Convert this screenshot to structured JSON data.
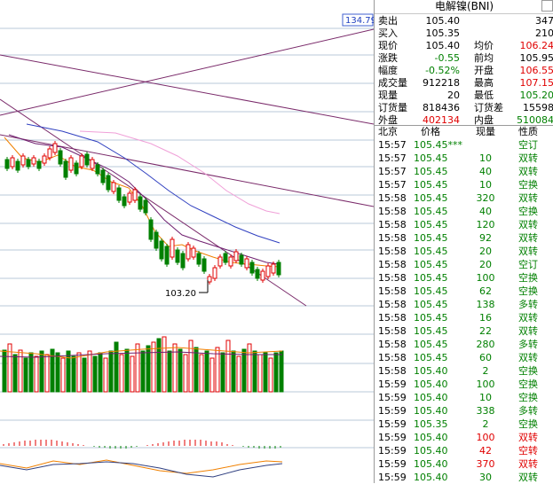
{
  "chart": {
    "price_tag": "134.79",
    "low_label": "103.20"
  },
  "panel": {
    "title": "电解镍(BNI)",
    "quote": [
      {
        "l1": "卖出",
        "v1": "105.40",
        "c1": "#000000",
        "l2": "",
        "v2": "347",
        "c2": "#000000"
      },
      {
        "l1": "买入",
        "v1": "105.35",
        "c1": "#000000",
        "l2": "",
        "v2": "210",
        "c2": "#000000"
      },
      {
        "l1": "现价",
        "v1": "105.40",
        "c1": "#000000",
        "l2": "均价",
        "v2": "106.24",
        "c2": "#e00000"
      },
      {
        "l1": "涨跌",
        "v1": "-0.55",
        "c1": "#008000",
        "l2": "前均",
        "v2": "105.95",
        "c2": "#000000"
      },
      {
        "l1": "幅度",
        "v1": "-0.52%",
        "c1": "#008000",
        "l2": "开盘",
        "v2": "106.55",
        "c2": "#e00000"
      },
      {
        "l1": "成交量",
        "v1": "912218",
        "c1": "#000000",
        "l2": "最高",
        "v2": "107.15",
        "c2": "#e00000"
      },
      {
        "l1": "现量",
        "v1": "20",
        "c1": "#000000",
        "l2": "最低",
        "v2": "105.20",
        "c2": "#008000"
      },
      {
        "l1": "订货量",
        "v1": "818436",
        "c1": "#000000",
        "l2": "订货差",
        "v2": "15598",
        "c2": "#000000"
      },
      {
        "l1": "外盘",
        "v1": "402134",
        "c1": "#e00000",
        "l2": "内盘",
        "v2": "510084",
        "c2": "#008000"
      }
    ],
    "trades_header": {
      "time": "北京",
      "price": "价格",
      "vol": "现量",
      "type": "性质"
    },
    "trades": [
      {
        "time": "15:57",
        "price": "105.45***",
        "vol": "",
        "type": "空订",
        "tc": "#008000",
        "vc": "#008000"
      },
      {
        "time": "15:57",
        "price": "105.45",
        "vol": "10",
        "type": "双转",
        "tc": "#008000",
        "vc": "#008000"
      },
      {
        "time": "15:57",
        "price": "105.45",
        "vol": "40",
        "type": "双转",
        "tc": "#008000",
        "vc": "#008000"
      },
      {
        "time": "15:57",
        "price": "105.45",
        "vol": "10",
        "type": "空换",
        "tc": "#008000",
        "vc": "#008000"
      },
      {
        "time": "15:58",
        "price": "105.45",
        "vol": "320",
        "type": "双转",
        "tc": "#008000",
        "vc": "#008000"
      },
      {
        "time": "15:58",
        "price": "105.45",
        "vol": "40",
        "type": "空换",
        "tc": "#008000",
        "vc": "#008000"
      },
      {
        "time": "15:58",
        "price": "105.45",
        "vol": "120",
        "type": "双转",
        "tc": "#008000",
        "vc": "#008000"
      },
      {
        "time": "15:58",
        "price": "105.45",
        "vol": "92",
        "type": "双转",
        "tc": "#008000",
        "vc": "#008000"
      },
      {
        "time": "15:58",
        "price": "105.45",
        "vol": "20",
        "type": "双转",
        "tc": "#008000",
        "vc": "#008000"
      },
      {
        "time": "15:58",
        "price": "105.45",
        "vol": "20",
        "type": "空订",
        "tc": "#008000",
        "vc": "#008000"
      },
      {
        "time": "15:58",
        "price": "105.45",
        "vol": "100",
        "type": "空换",
        "tc": "#008000",
        "vc": "#008000"
      },
      {
        "time": "15:58",
        "price": "105.45",
        "vol": "62",
        "type": "空换",
        "tc": "#008000",
        "vc": "#008000"
      },
      {
        "time": "15:58",
        "price": "105.45",
        "vol": "138",
        "type": "多转",
        "tc": "#008000",
        "vc": "#008000"
      },
      {
        "time": "15:58",
        "price": "105.45",
        "vol": "16",
        "type": "双转",
        "tc": "#008000",
        "vc": "#008000"
      },
      {
        "time": "15:58",
        "price": "105.45",
        "vol": "22",
        "type": "双转",
        "tc": "#008000",
        "vc": "#008000"
      },
      {
        "time": "15:58",
        "price": "105.45",
        "vol": "280",
        "type": "多转",
        "tc": "#008000",
        "vc": "#008000"
      },
      {
        "time": "15:58",
        "price": "105.45",
        "vol": "60",
        "type": "双转",
        "tc": "#008000",
        "vc": "#008000"
      },
      {
        "time": "15:58",
        "price": "105.40",
        "vol": "2",
        "type": "空换",
        "tc": "#008000",
        "vc": "#008000"
      },
      {
        "time": "15:59",
        "price": "105.40",
        "vol": "100",
        "type": "空换",
        "tc": "#008000",
        "vc": "#008000"
      },
      {
        "time": "15:59",
        "price": "105.40",
        "vol": "10",
        "type": "空换",
        "tc": "#008000",
        "vc": "#008000"
      },
      {
        "time": "15:59",
        "price": "105.40",
        "vol": "338",
        "type": "多转",
        "tc": "#008000",
        "vc": "#008000"
      },
      {
        "time": "15:59",
        "price": "105.35",
        "vol": "2",
        "type": "空换",
        "tc": "#008000",
        "vc": "#008000"
      },
      {
        "time": "15:59",
        "price": "105.40",
        "vol": "100",
        "type": "双转",
        "tc": "#e00000",
        "vc": "#e00000"
      },
      {
        "time": "15:59",
        "price": "105.40",
        "vol": "42",
        "type": "空转",
        "tc": "#e00000",
        "vc": "#e00000"
      },
      {
        "time": "15:59",
        "price": "105.40",
        "vol": "370",
        "type": "双转",
        "tc": "#e00000",
        "vc": "#e00000"
      },
      {
        "time": "15:59",
        "price": "105.40",
        "vol": "30",
        "type": "双转",
        "tc": "#008000",
        "vc": "#008000"
      }
    ]
  }
}
